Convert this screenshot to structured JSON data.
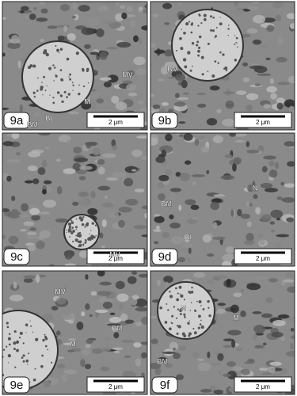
{
  "panels": [
    {
      "label": "9a",
      "annotations": [
        "MV",
        "M",
        "BL",
        "BM"
      ],
      "scale_bar": "2 μm"
    },
    {
      "label": "9b",
      "annotations": [
        "BM"
      ],
      "scale_bar": "2 μm"
    },
    {
      "label": "9c",
      "annotations": [
        "MV"
      ],
      "scale_bar": "2 μm"
    },
    {
      "label": "9d",
      "annotations": [
        "BM",
        "N",
        "BI"
      ],
      "scale_bar": "2 μm"
    },
    {
      "label": "9e",
      "annotations": [
        "MV",
        "M",
        "BM"
      ],
      "scale_bar": "2 μm"
    },
    {
      "label": "9f",
      "annotations": [
        "N",
        "M",
        "BM"
      ],
      "scale_bar": "2 μm"
    }
  ]
}
